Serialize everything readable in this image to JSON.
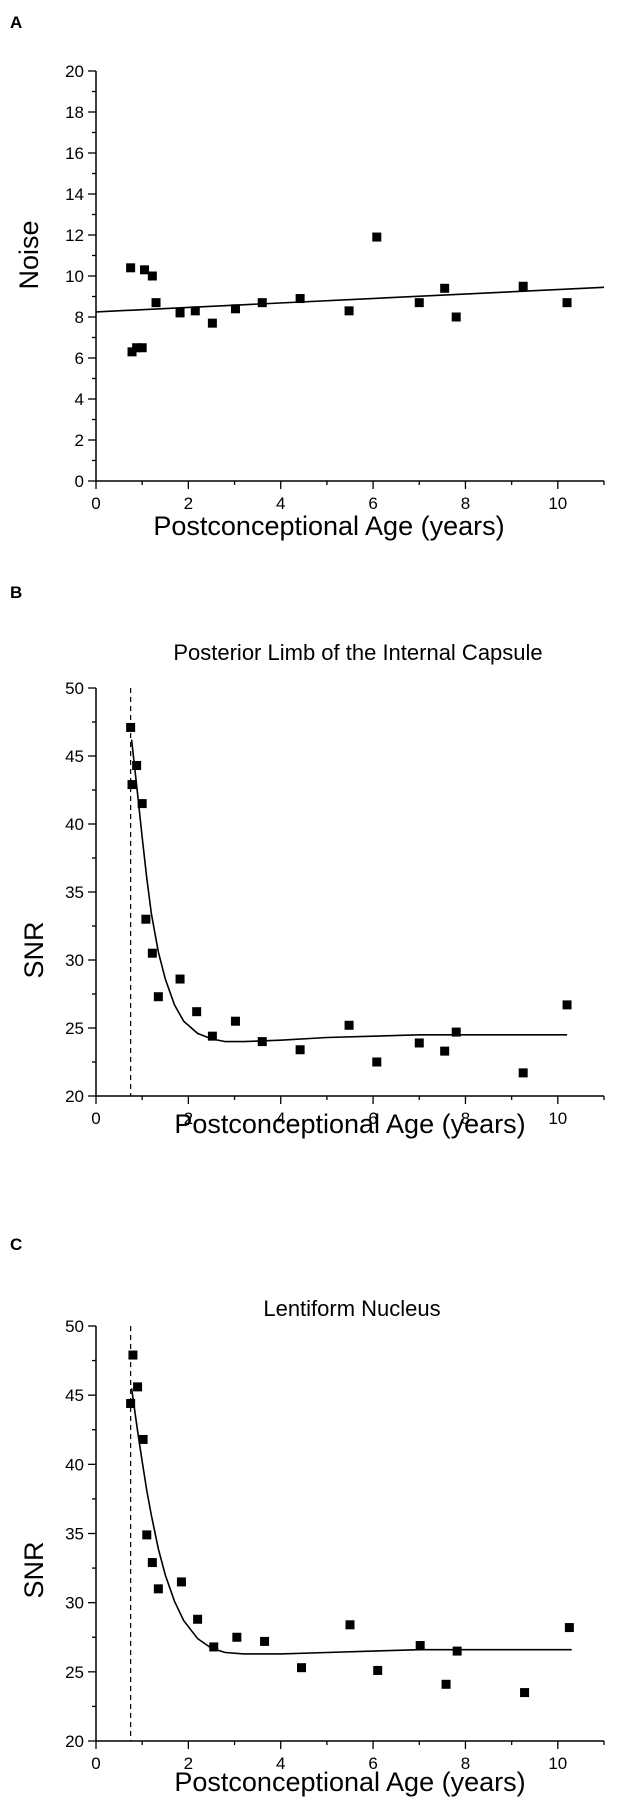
{
  "chart_data": [
    {
      "panel_label": "A",
      "type": "scatter",
      "title": "",
      "xlabel": "Postconceptional Age (years)",
      "ylabel": "Noise",
      "xlim": [
        0,
        11
      ],
      "ylim": [
        0,
        20
      ],
      "xticks": [
        0,
        2,
        4,
        6,
        8,
        10
      ],
      "yticks": [
        0,
        2,
        4,
        6,
        8,
        10,
        12,
        14,
        16,
        18,
        20
      ],
      "grid": false,
      "points": [
        [
          0.75,
          10.4
        ],
        [
          0.78,
          6.3
        ],
        [
          0.88,
          6.5
        ],
        [
          1.0,
          6.5
        ],
        [
          1.05,
          10.3
        ],
        [
          1.22,
          10.0
        ],
        [
          1.3,
          8.7
        ],
        [
          1.82,
          8.2
        ],
        [
          2.15,
          8.3
        ],
        [
          2.52,
          7.7
        ],
        [
          3.02,
          8.4
        ],
        [
          3.6,
          8.7
        ],
        [
          4.42,
          8.9
        ],
        [
          5.48,
          8.3
        ],
        [
          6.08,
          11.9
        ],
        [
          7.0,
          8.7
        ],
        [
          7.55,
          9.4
        ],
        [
          7.8,
          8.0
        ],
        [
          9.25,
          9.5
        ],
        [
          10.2,
          8.7
        ]
      ],
      "fit_line": [
        [
          0,
          8.25
        ],
        [
          11,
          9.45
        ]
      ]
    },
    {
      "panel_label": "B",
      "type": "scatter",
      "title": "Posterior Limb of the Internal Capsule",
      "xlabel": "Postconceptional Age (years)",
      "ylabel": "SNR",
      "xlim": [
        0,
        11
      ],
      "ylim": [
        20,
        50
      ],
      "xticks": [
        0,
        2,
        4,
        6,
        8,
        10
      ],
      "yticks": [
        20,
        25,
        30,
        35,
        40,
        45,
        50
      ],
      "grid": false,
      "reference_x": 0.75,
      "points": [
        [
          0.75,
          47.1
        ],
        [
          0.78,
          42.9
        ],
        [
          0.88,
          44.3
        ],
        [
          1.0,
          41.5
        ],
        [
          1.08,
          33.0
        ],
        [
          1.22,
          30.5
        ],
        [
          1.35,
          27.3
        ],
        [
          1.82,
          28.6
        ],
        [
          2.18,
          26.2
        ],
        [
          2.52,
          24.4
        ],
        [
          3.02,
          25.5
        ],
        [
          3.6,
          24.0
        ],
        [
          4.42,
          23.4
        ],
        [
          5.48,
          25.2
        ],
        [
          6.08,
          22.5
        ],
        [
          7.0,
          23.9
        ],
        [
          7.55,
          23.3
        ],
        [
          7.8,
          24.7
        ],
        [
          9.25,
          21.7
        ],
        [
          10.2,
          26.7
        ]
      ],
      "fit_curve": [
        [
          0.77,
          46.2
        ],
        [
          0.9,
          42.2
        ],
        [
          1.0,
          39.0
        ],
        [
          1.1,
          36.0
        ],
        [
          1.2,
          33.4
        ],
        [
          1.35,
          30.6
        ],
        [
          1.5,
          28.6
        ],
        [
          1.7,
          26.7
        ],
        [
          1.9,
          25.5
        ],
        [
          2.2,
          24.6
        ],
        [
          2.5,
          24.2
        ],
        [
          2.8,
          24.0
        ],
        [
          3.2,
          24.0
        ],
        [
          4.0,
          24.1
        ],
        [
          5.0,
          24.3
        ],
        [
          6.0,
          24.4
        ],
        [
          7.0,
          24.5
        ],
        [
          8.0,
          24.5
        ],
        [
          9.0,
          24.5
        ],
        [
          10.2,
          24.5
        ]
      ]
    },
    {
      "panel_label": "C",
      "type": "scatter",
      "title": "Lentiform Nucleus",
      "xlabel": "Postconceptional Age (years)",
      "ylabel": "SNR",
      "xlim": [
        0,
        11
      ],
      "ylim": [
        20,
        50
      ],
      "xticks": [
        0,
        2,
        4,
        6,
        8,
        10
      ],
      "yticks": [
        20,
        25,
        30,
        35,
        40,
        45,
        50
      ],
      "grid": false,
      "reference_x": 0.75,
      "points": [
        [
          0.75,
          44.4
        ],
        [
          0.8,
          47.9
        ],
        [
          0.9,
          45.6
        ],
        [
          1.02,
          41.8
        ],
        [
          1.1,
          34.9
        ],
        [
          1.22,
          32.9
        ],
        [
          1.35,
          31.0
        ],
        [
          1.85,
          31.5
        ],
        [
          2.2,
          28.8
        ],
        [
          2.55,
          26.8
        ],
        [
          3.05,
          27.5
        ],
        [
          3.65,
          27.2
        ],
        [
          4.45,
          25.3
        ],
        [
          5.5,
          28.4
        ],
        [
          6.1,
          25.1
        ],
        [
          7.02,
          26.9
        ],
        [
          7.58,
          24.1
        ],
        [
          7.82,
          26.5
        ],
        [
          9.28,
          23.5
        ],
        [
          10.25,
          28.2
        ]
      ],
      "fit_curve": [
        [
          0.77,
          45.5
        ],
        [
          0.9,
          42.4
        ],
        [
          1.0,
          40.2
        ],
        [
          1.1,
          38.1
        ],
        [
          1.2,
          36.3
        ],
        [
          1.35,
          33.9
        ],
        [
          1.5,
          32.0
        ],
        [
          1.7,
          30.1
        ],
        [
          1.9,
          28.7
        ],
        [
          2.2,
          27.4
        ],
        [
          2.5,
          26.7
        ],
        [
          2.8,
          26.4
        ],
        [
          3.2,
          26.3
        ],
        [
          4.0,
          26.3
        ],
        [
          5.0,
          26.4
        ],
        [
          6.0,
          26.5
        ],
        [
          7.0,
          26.6
        ],
        [
          8.0,
          26.6
        ],
        [
          9.0,
          26.6
        ],
        [
          10.3,
          26.6
        ]
      ]
    }
  ]
}
